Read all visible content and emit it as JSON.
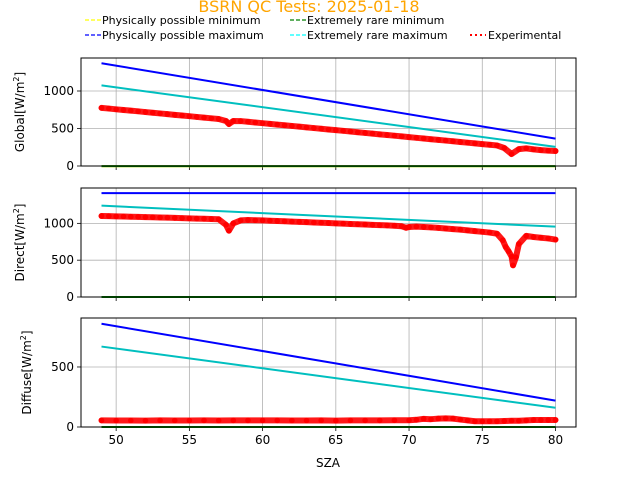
{
  "chart_data": {
    "type": "scatter",
    "title": "BSRN QC Tests: 2025-01-18",
    "title_color": "#ffa500",
    "xlabel": "SZA",
    "xlim": [
      47.6,
      81.4
    ],
    "xticks": [
      50,
      55,
      60,
      65,
      70,
      75,
      80
    ],
    "grid": true,
    "legend_placement": "top",
    "legend": [
      {
        "name": "Physically possible minimum",
        "color": "#ffff00",
        "style": "dashed"
      },
      {
        "name": "Extremely rare minimum",
        "color": "#008000",
        "style": "dashed"
      },
      {
        "name": "Physically possible maximum",
        "color": "#0000ff",
        "style": "dashed"
      },
      {
        "name": "Extremely rare maximum",
        "color": "#00ffff",
        "style": "dashed"
      },
      {
        "name": "Experimental",
        "color": "#ff0000",
        "style": "dotted"
      }
    ],
    "panels": [
      {
        "ylabel": "Global[W/m",
        "ylabel_sup": "2",
        "ylabel_end": "]",
        "ylim": [
          0,
          1440
        ],
        "yticks": [
          0,
          500,
          1000
        ],
        "lines": {
          "phys_min": [
            [
              49,
              -4
            ],
            [
              80,
              -4
            ]
          ],
          "rare_min": [
            [
              49,
              -2
            ],
            [
              80,
              -2
            ]
          ],
          "phys_max": [
            [
              49,
              1370
            ],
            [
              80,
              365
            ]
          ],
          "rare_max": [
            [
              49,
              1075
            ],
            [
              80,
              255
            ]
          ]
        },
        "experimental": [
          [
            49,
            775
          ],
          [
            49.5,
            766
          ],
          [
            50,
            756
          ],
          [
            50.5,
            747
          ],
          [
            51,
            738
          ],
          [
            51.5,
            729
          ],
          [
            52,
            719
          ],
          [
            52.5,
            710
          ],
          [
            53,
            701
          ],
          [
            53.5,
            692
          ],
          [
            54,
            682
          ],
          [
            54.5,
            673
          ],
          [
            55,
            664
          ],
          [
            55.5,
            654
          ],
          [
            56,
            645
          ],
          [
            56.5,
            636
          ],
          [
            57,
            627
          ],
          [
            57.5,
            600
          ],
          [
            57.7,
            560
          ],
          [
            58,
            600
          ],
          [
            58.5,
            599
          ],
          [
            59,
            590
          ],
          [
            59.5,
            580
          ],
          [
            60,
            571
          ],
          [
            60.5,
            562
          ],
          [
            61,
            552
          ],
          [
            61.5,
            543
          ],
          [
            62,
            534
          ],
          [
            62.5,
            525
          ],
          [
            63,
            515
          ],
          [
            63.5,
            506
          ],
          [
            64,
            497
          ],
          [
            64.5,
            487
          ],
          [
            65,
            478
          ],
          [
            65.5,
            469
          ],
          [
            66,
            460
          ],
          [
            66.5,
            450
          ],
          [
            67,
            441
          ],
          [
            67.5,
            432
          ],
          [
            68,
            422
          ],
          [
            68.5,
            413
          ],
          [
            69,
            404
          ],
          [
            69.5,
            395
          ],
          [
            70,
            385
          ],
          [
            70.5,
            376
          ],
          [
            71,
            367
          ],
          [
            71.5,
            357
          ],
          [
            72,
            348
          ],
          [
            72.5,
            339
          ],
          [
            73,
            330
          ],
          [
            73.5,
            320
          ],
          [
            74,
            311
          ],
          [
            74.5,
            302
          ],
          [
            75,
            292
          ],
          [
            75.5,
            283
          ],
          [
            76,
            274
          ],
          [
            76.5,
            240
          ],
          [
            77,
            160
          ],
          [
            77.5,
            225
          ],
          [
            78,
            235
          ],
          [
            78.5,
            222
          ],
          [
            79,
            212
          ],
          [
            79.5,
            205
          ],
          [
            80,
            200
          ]
        ]
      },
      {
        "ylabel": "Direct[W/m",
        "ylabel_sup": "2",
        "ylabel_end": "]",
        "ylim": [
          0,
          1480
        ],
        "yticks": [
          0,
          500,
          1000
        ],
        "lines": {
          "phys_min": [
            [
              49,
              0
            ],
            [
              80,
              0
            ]
          ],
          "rare_min": [
            [
              49,
              0
            ],
            [
              80,
              0
            ]
          ],
          "phys_max": [
            [
              49,
              1410
            ],
            [
              80,
              1410
            ]
          ],
          "rare_max": [
            [
              49,
              1240
            ],
            [
              80,
              955
            ]
          ]
        },
        "experimental": [
          [
            49,
            1100
          ],
          [
            49.5,
            1098
          ],
          [
            50,
            1095
          ],
          [
            50.5,
            1093
          ],
          [
            51,
            1090
          ],
          [
            51.5,
            1088
          ],
          [
            52,
            1085
          ],
          [
            52.5,
            1083
          ],
          [
            53,
            1080
          ],
          [
            53.5,
            1077
          ],
          [
            54,
            1074
          ],
          [
            54.5,
            1071
          ],
          [
            55,
            1068
          ],
          [
            55.5,
            1065
          ],
          [
            56,
            1062
          ],
          [
            56.5,
            1059
          ],
          [
            57,
            1056
          ],
          [
            57.5,
            980
          ],
          [
            57.7,
            900
          ],
          [
            58,
            1000
          ],
          [
            58.5,
            1040
          ],
          [
            59,
            1045
          ],
          [
            59.5,
            1042
          ],
          [
            60,
            1040
          ],
          [
            60.5,
            1036
          ],
          [
            61,
            1032
          ],
          [
            61.5,
            1028
          ],
          [
            62,
            1024
          ],
          [
            62.5,
            1020
          ],
          [
            63,
            1016
          ],
          [
            63.5,
            1012
          ],
          [
            64,
            1008
          ],
          [
            64.5,
            1004
          ],
          [
            65,
            1000
          ],
          [
            65.5,
            996
          ],
          [
            66,
            992
          ],
          [
            66.5,
            988
          ],
          [
            67,
            984
          ],
          [
            67.5,
            980
          ],
          [
            68,
            976
          ],
          [
            68.5,
            972
          ],
          [
            69,
            968
          ],
          [
            69.5,
            960
          ],
          [
            69.8,
            940
          ],
          [
            70,
            950
          ],
          [
            70.5,
            955
          ],
          [
            71,
            950
          ],
          [
            71.5,
            945
          ],
          [
            72,
            938
          ],
          [
            72.5,
            930
          ],
          [
            73,
            922
          ],
          [
            73.5,
            915
          ],
          [
            74,
            905
          ],
          [
            74.5,
            895
          ],
          [
            75,
            885
          ],
          [
            75.5,
            875
          ],
          [
            76,
            860
          ],
          [
            76.4,
            770
          ],
          [
            76.6,
            680
          ],
          [
            76.8,
            620
          ],
          [
            77,
            550
          ],
          [
            77.1,
            430
          ],
          [
            77.3,
            540
          ],
          [
            77.5,
            720
          ],
          [
            78,
            830
          ],
          [
            78.5,
            815
          ],
          [
            79,
            805
          ],
          [
            79.5,
            795
          ],
          [
            80,
            780
          ]
        ]
      },
      {
        "ylabel": "Diffuse[W/m",
        "ylabel_sup": "2",
        "ylabel_end": "]",
        "ylim": [
          0,
          908
        ],
        "yticks": [
          0,
          500
        ],
        "lines": {
          "phys_min": [
            [
              49,
              0
            ],
            [
              80,
              0
            ]
          ],
          "rare_min": [
            [
              49,
              0
            ],
            [
              80,
              0
            ]
          ],
          "phys_max": [
            [
              49,
              860
            ],
            [
              80,
              220
            ]
          ],
          "rare_max": [
            [
              49,
              670
            ],
            [
              80,
              160
            ]
          ]
        },
        "experimental": [
          [
            49,
            55
          ],
          [
            50,
            54
          ],
          [
            51,
            54
          ],
          [
            52,
            53
          ],
          [
            53,
            55
          ],
          [
            54,
            54
          ],
          [
            55,
            54
          ],
          [
            56,
            55
          ],
          [
            57,
            54
          ],
          [
            58,
            55
          ],
          [
            59,
            55
          ],
          [
            60,
            55
          ],
          [
            61,
            55
          ],
          [
            62,
            54
          ],
          [
            63,
            54
          ],
          [
            64,
            55
          ],
          [
            65,
            53
          ],
          [
            66,
            55
          ],
          [
            67,
            55
          ],
          [
            68,
            55
          ],
          [
            69,
            56
          ],
          [
            70,
            56
          ],
          [
            70.5,
            60
          ],
          [
            71,
            68
          ],
          [
            71.5,
            65
          ],
          [
            72,
            70
          ],
          [
            72.5,
            72
          ],
          [
            73,
            70
          ],
          [
            73.5,
            62
          ],
          [
            74,
            55
          ],
          [
            74.5,
            48
          ],
          [
            75,
            48
          ],
          [
            75.5,
            48
          ],
          [
            76,
            48
          ],
          [
            76.5,
            50
          ],
          [
            77,
            52
          ],
          [
            77.5,
            52
          ],
          [
            78,
            55
          ],
          [
            78.5,
            58
          ],
          [
            79,
            58
          ],
          [
            79.5,
            58
          ],
          [
            80,
            58
          ]
        ]
      }
    ]
  }
}
